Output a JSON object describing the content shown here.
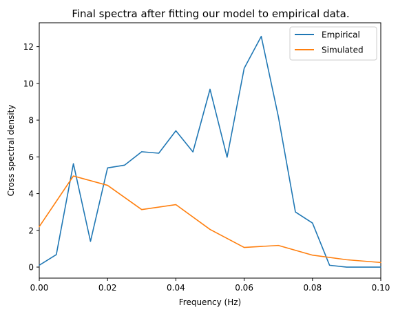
{
  "chart_data": {
    "type": "line",
    "title": "Final spectra after fitting our model to empirical data.",
    "xlabel": "Frequency (Hz)",
    "ylabel": "Cross spectral density",
    "xlim": [
      0,
      0.1
    ],
    "ylim": [
      -0.6,
      13.3
    ],
    "xticks": [
      0,
      0.02,
      0.04,
      0.06,
      0.08,
      0.1
    ],
    "xtick_labels": [
      "0.00",
      "0.02",
      "0.04",
      "0.06",
      "0.08",
      "0.10"
    ],
    "yticks": [
      0,
      2,
      4,
      6,
      8,
      10,
      12
    ],
    "ytick_labels": [
      "0",
      "2",
      "4",
      "6",
      "8",
      "10",
      "12"
    ],
    "grid": false,
    "legend_position": "top-right",
    "series": [
      {
        "name": "Empirical",
        "color": "#1f77b4",
        "points": [
          [
            0.0,
            0.1
          ],
          [
            0.005,
            0.68
          ],
          [
            0.01,
            5.63
          ],
          [
            0.015,
            1.4
          ],
          [
            0.02,
            5.4
          ],
          [
            0.025,
            5.55
          ],
          [
            0.03,
            6.28
          ],
          [
            0.035,
            6.2
          ],
          [
            0.04,
            7.42
          ],
          [
            0.045,
            6.27
          ],
          [
            0.05,
            9.68
          ],
          [
            0.055,
            5.98
          ],
          [
            0.06,
            10.82
          ],
          [
            0.065,
            12.56
          ],
          [
            0.07,
            8.2
          ],
          [
            0.075,
            3.0
          ],
          [
            0.08,
            2.4
          ],
          [
            0.085,
            0.1
          ],
          [
            0.09,
            0.0
          ],
          [
            0.095,
            0.0
          ],
          [
            0.1,
            0.0
          ]
        ]
      },
      {
        "name": "Simulated",
        "color": "#ff7f0e",
        "points": [
          [
            0.0,
            2.2
          ],
          [
            0.01,
            4.96
          ],
          [
            0.02,
            4.45
          ],
          [
            0.03,
            3.13
          ],
          [
            0.04,
            3.4
          ],
          [
            0.05,
            2.05
          ],
          [
            0.06,
            1.07
          ],
          [
            0.07,
            1.18
          ],
          [
            0.08,
            0.65
          ],
          [
            0.09,
            0.4
          ],
          [
            0.1,
            0.25
          ]
        ]
      }
    ]
  }
}
